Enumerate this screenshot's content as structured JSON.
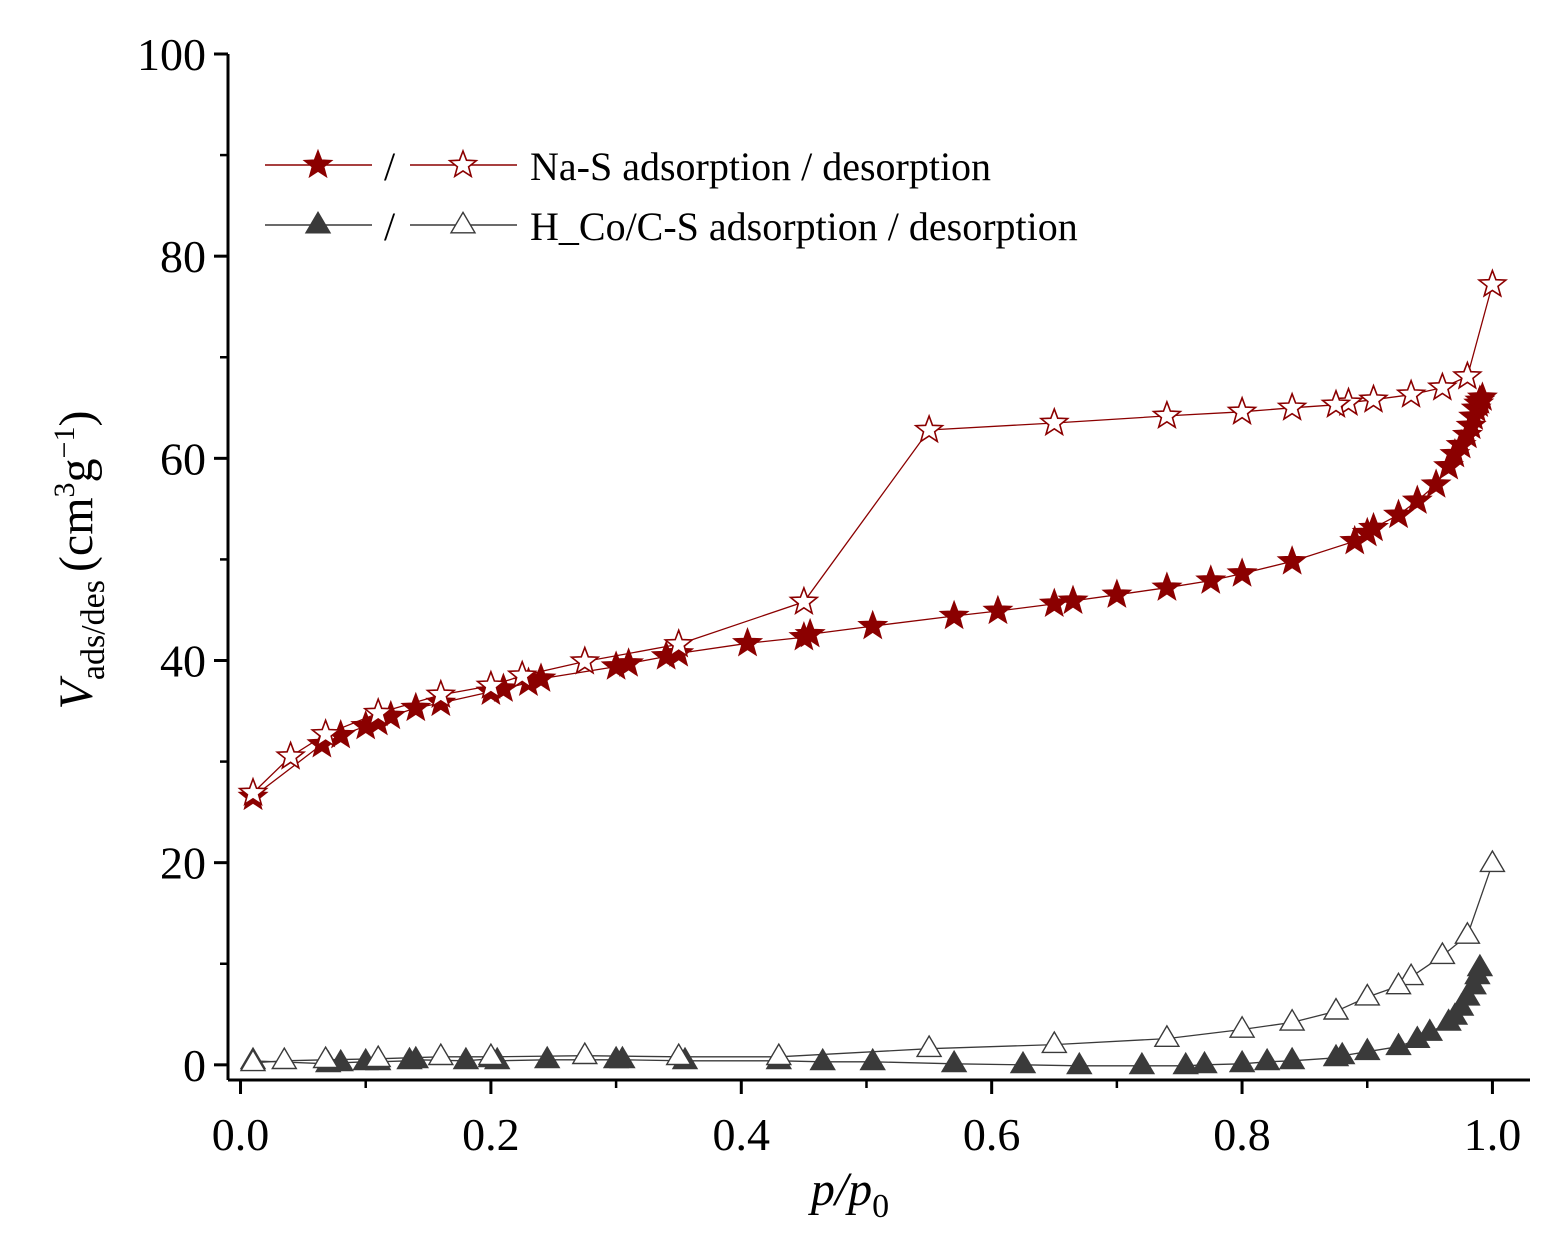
{
  "chart_data": {
    "type": "scatter",
    "title": "",
    "xlabel": {
      "main": "p/p",
      "sub": "0"
    },
    "ylabel": {
      "main": "V",
      "sub": "ads/des",
      "unit_open": "(cm",
      "unit_sup1": "3",
      "unit_mid": "g",
      "unit_sup2": "−1",
      "unit_close": ")"
    },
    "xlim": [
      -0.01,
      1.03
    ],
    "ylim": [
      -1.5,
      100
    ],
    "xticks": [
      0.0,
      0.2,
      0.4,
      0.6,
      0.8,
      1.0
    ],
    "xtick_labels": [
      "0.0",
      "0.2",
      "0.4",
      "0.6",
      "0.8",
      "1.0"
    ],
    "yticks": [
      0,
      20,
      40,
      60,
      80,
      100
    ],
    "ytick_labels": [
      "0",
      "20",
      "40",
      "60",
      "80",
      "100"
    ],
    "legend": {
      "position": "top-left",
      "separator": "/",
      "entries": [
        {
          "label": "Na-S adsorption / desorption"
        },
        {
          "label": "H_Co/C-S adsorption / desorption"
        }
      ]
    },
    "colors": {
      "na": "#8b0000",
      "hco": "#3a3a3a"
    },
    "series": [
      {
        "name": "Na-S adsorption",
        "marker": "star",
        "fill": "filled",
        "color": "#8b0000",
        "x": [
          0.01,
          0.065,
          0.08,
          0.1,
          0.11,
          0.12,
          0.14,
          0.16,
          0.2,
          0.21,
          0.23,
          0.24,
          0.3,
          0.31,
          0.34,
          0.35,
          0.405,
          0.45,
          0.455,
          0.505,
          0.57,
          0.605,
          0.65,
          0.665,
          0.7,
          0.74,
          0.775,
          0.8,
          0.84,
          0.89,
          0.9,
          0.905,
          0.925,
          0.94,
          0.955,
          0.965,
          0.97,
          0.975,
          0.98,
          0.983,
          0.985,
          0.987,
          0.989,
          0.99,
          0.992
        ],
        "y": [
          26.5,
          31.7,
          32.6,
          33.5,
          33.9,
          34.5,
          35.3,
          35.8,
          36.9,
          37.2,
          37.8,
          38.2,
          39.4,
          39.7,
          40.4,
          40.7,
          41.7,
          42.3,
          42.6,
          43.4,
          44.4,
          44.9,
          45.6,
          45.9,
          46.5,
          47.2,
          47.9,
          48.6,
          49.8,
          51.8,
          52.6,
          53.1,
          54.4,
          55.8,
          57.4,
          59.2,
          60.4,
          61.3,
          62.3,
          63.2,
          64.1,
          64.9,
          65.4,
          65.7,
          66.0
        ]
      },
      {
        "name": "Na-S desorption",
        "marker": "star",
        "fill": "open",
        "color": "#8b0000",
        "x": [
          1.0,
          0.98,
          0.96,
          0.935,
          0.905,
          0.885,
          0.875,
          0.84,
          0.8,
          0.74,
          0.65,
          0.55,
          0.45,
          0.35,
          0.275,
          0.225,
          0.2,
          0.16,
          0.11,
          0.068,
          0.04,
          0.01
        ],
        "y": [
          77.2,
          68.1,
          67.0,
          66.3,
          65.8,
          65.5,
          65.3,
          65.0,
          64.6,
          64.2,
          63.5,
          62.8,
          45.8,
          41.6,
          39.9,
          38.5,
          37.5,
          36.6,
          34.8,
          32.7,
          30.5,
          26.9
        ]
      },
      {
        "name": "H_Co/C-S adsorption",
        "marker": "triangle",
        "fill": "filled",
        "color": "#3a3a3a",
        "x": [
          0.01,
          0.07,
          0.08,
          0.1,
          0.11,
          0.135,
          0.14,
          0.18,
          0.2,
          0.205,
          0.245,
          0.3,
          0.305,
          0.355,
          0.43,
          0.465,
          0.505,
          0.57,
          0.625,
          0.67,
          0.72,
          0.755,
          0.77,
          0.8,
          0.82,
          0.84,
          0.875,
          0.88,
          0.9,
          0.925,
          0.94,
          0.95,
          0.965,
          0.97,
          0.975,
          0.98,
          0.985,
          0.988,
          0.99
        ],
        "y": [
          0.4,
          0.1,
          0.2,
          0.3,
          0.3,
          0.4,
          0.5,
          0.4,
          0.6,
          0.4,
          0.5,
          0.5,
          0.5,
          0.4,
          0.4,
          0.3,
          0.3,
          0.1,
          0.0,
          -0.1,
          -0.1,
          -0.1,
          0.0,
          0.1,
          0.3,
          0.4,
          0.7,
          0.9,
          1.3,
          1.8,
          2.5,
          3.2,
          4.2,
          4.8,
          5.7,
          6.7,
          7.8,
          8.8,
          9.6
        ]
      },
      {
        "name": "H_Co/C-S desorption",
        "marker": "triangle",
        "fill": "open",
        "color": "#3a3a3a",
        "x": [
          1.0,
          0.98,
          0.96,
          0.935,
          0.925,
          0.9,
          0.875,
          0.84,
          0.8,
          0.74,
          0.65,
          0.55,
          0.43,
          0.35,
          0.275,
          0.2,
          0.16,
          0.11,
          0.068,
          0.035,
          0.01
        ],
        "y": [
          19.9,
          12.8,
          10.8,
          8.7,
          7.8,
          6.7,
          5.3,
          4.2,
          3.5,
          2.6,
          2.0,
          1.6,
          0.8,
          0.8,
          0.9,
          0.8,
          0.8,
          0.6,
          0.5,
          0.4,
          0.2
        ]
      }
    ]
  }
}
